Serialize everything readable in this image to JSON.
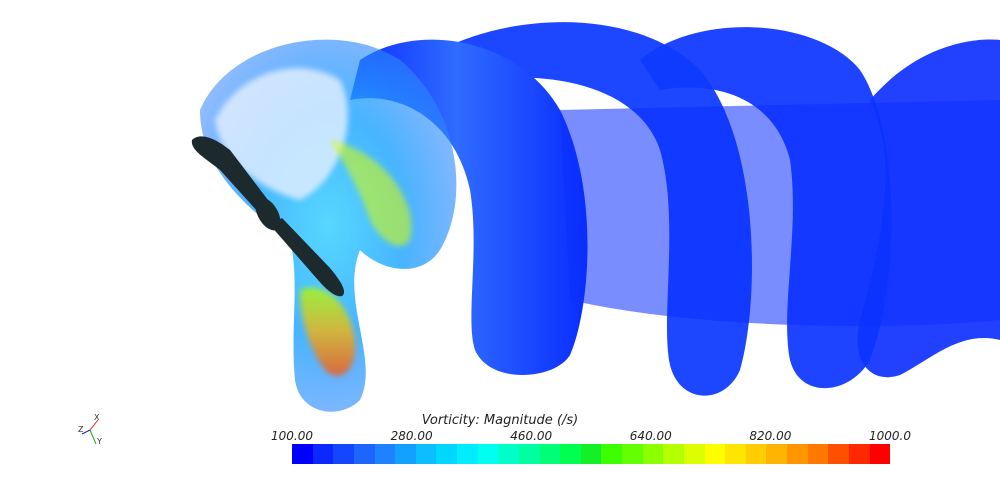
{
  "legend": {
    "title": "Vorticity: Magnitude (/s)",
    "tick_labels": [
      "100.00",
      "280.00",
      "460.00",
      "640.00",
      "820.00",
      "1000.0"
    ],
    "colormap": [
      "#0000ff",
      "#0a28ff",
      "#1446ff",
      "#1e64ff",
      "#1e82ff",
      "#14a0ff",
      "#0abeff",
      "#00d7ff",
      "#00ecff",
      "#00fff0",
      "#00ffc8",
      "#00ffa0",
      "#00ff78",
      "#00ff50",
      "#14f028",
      "#3cff00",
      "#64ff00",
      "#8cff00",
      "#b4ff00",
      "#dcff00",
      "#ffff00",
      "#ffe600",
      "#ffcd00",
      "#ffb400",
      "#ff9600",
      "#ff7800",
      "#ff5000",
      "#ff2800",
      "#ff0000"
    ]
  },
  "axes": {
    "x_label": "X",
    "y_label": "Y",
    "z_label": "Z"
  },
  "colors": {
    "vortex_blue": "#0a2cff",
    "vortex_core": "#1460ff",
    "propeller": "#1c2a2e"
  }
}
